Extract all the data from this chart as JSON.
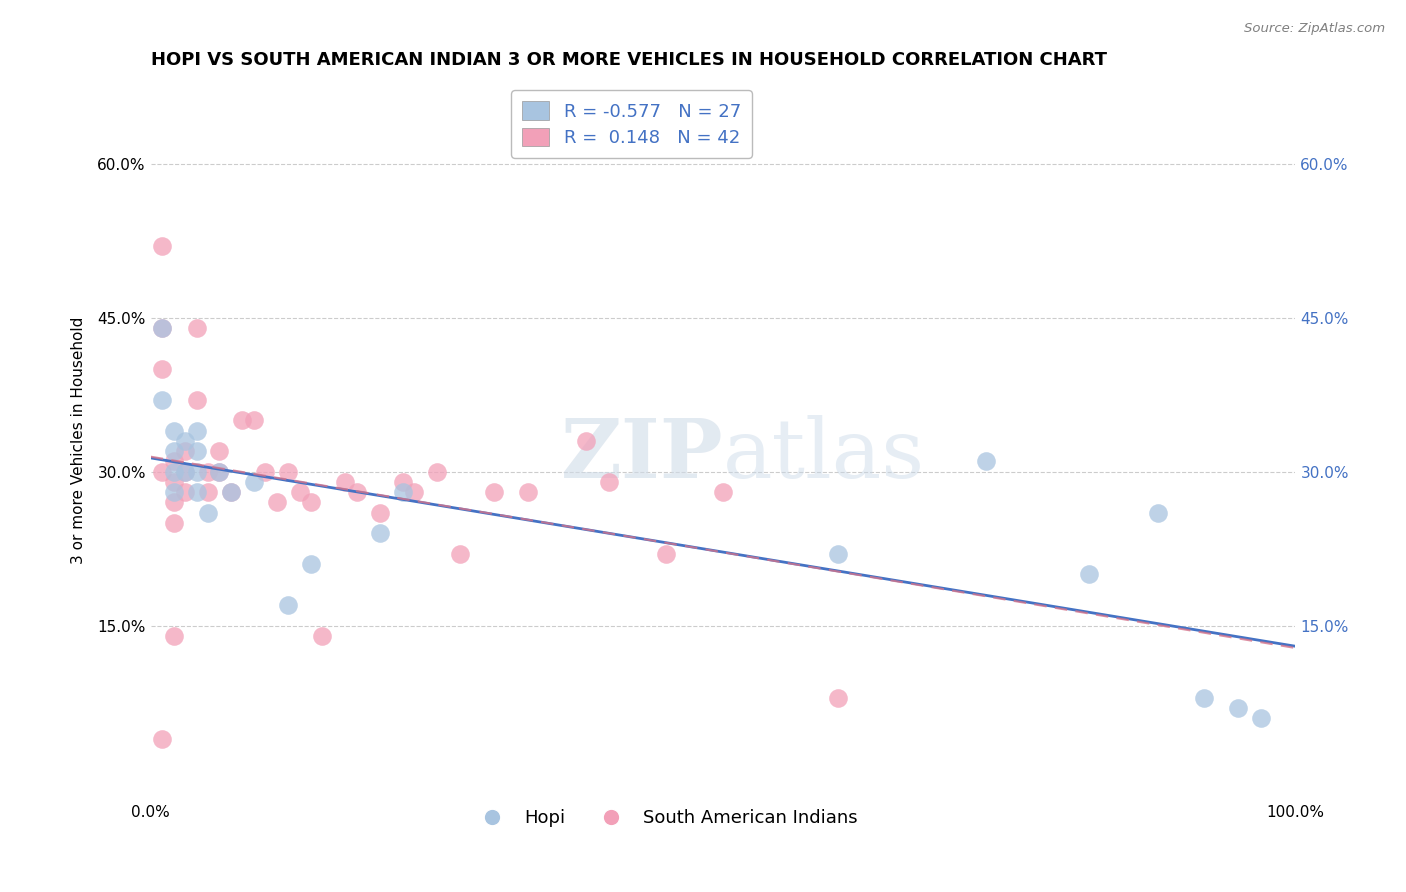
{
  "title": "HOPI VS SOUTH AMERICAN INDIAN 3 OR MORE VEHICLES IN HOUSEHOLD CORRELATION CHART",
  "source_text": "Source: ZipAtlas.com",
  "ylabel": "3 or more Vehicles in Household",
  "xlim": [
    0.0,
    1.0
  ],
  "ylim": [
    -0.02,
    0.68
  ],
  "x_ticks": [
    0.0,
    1.0
  ],
  "x_tick_labels": [
    "0.0%",
    "100.0%"
  ],
  "y_ticks": [
    0.15,
    0.3,
    0.45,
    0.6
  ],
  "y_tick_labels": [
    "15.0%",
    "30.0%",
    "45.0%",
    "60.0%"
  ],
  "hopi_R": -0.577,
  "hopi_N": 27,
  "sa_R": 0.148,
  "sa_N": 42,
  "hopi_color": "#a8c4e0",
  "sa_color": "#f2a0b8",
  "hopi_line_color": "#4472c4",
  "sa_line_color": "#d4728a",
  "legend_hopi_label": "Hopi",
  "legend_sa_label": "South American Indians",
  "watermark_zip": "ZIP",
  "watermark_atlas": "atlas",
  "hopi_x": [
    0.01,
    0.01,
    0.02,
    0.02,
    0.02,
    0.02,
    0.03,
    0.03,
    0.04,
    0.04,
    0.04,
    0.04,
    0.05,
    0.06,
    0.07,
    0.09,
    0.12,
    0.14,
    0.2,
    0.22,
    0.6,
    0.73,
    0.82,
    0.88,
    0.92,
    0.95,
    0.97
  ],
  "hopi_y": [
    0.44,
    0.37,
    0.34,
    0.32,
    0.3,
    0.28,
    0.33,
    0.3,
    0.34,
    0.32,
    0.3,
    0.28,
    0.26,
    0.3,
    0.28,
    0.29,
    0.17,
    0.21,
    0.24,
    0.28,
    0.22,
    0.31,
    0.2,
    0.26,
    0.08,
    0.07,
    0.06
  ],
  "sa_x": [
    0.01,
    0.01,
    0.01,
    0.01,
    0.01,
    0.02,
    0.02,
    0.02,
    0.02,
    0.02,
    0.03,
    0.03,
    0.03,
    0.04,
    0.04,
    0.05,
    0.05,
    0.06,
    0.06,
    0.07,
    0.08,
    0.09,
    0.1,
    0.11,
    0.12,
    0.13,
    0.14,
    0.15,
    0.17,
    0.18,
    0.2,
    0.22,
    0.23,
    0.25,
    0.27,
    0.3,
    0.33,
    0.38,
    0.4,
    0.45,
    0.5,
    0.6
  ],
  "sa_y": [
    0.52,
    0.44,
    0.4,
    0.3,
    0.04,
    0.31,
    0.29,
    0.27,
    0.25,
    0.14,
    0.32,
    0.3,
    0.28,
    0.44,
    0.37,
    0.3,
    0.28,
    0.32,
    0.3,
    0.28,
    0.35,
    0.35,
    0.3,
    0.27,
    0.3,
    0.28,
    0.27,
    0.14,
    0.29,
    0.28,
    0.26,
    0.29,
    0.28,
    0.3,
    0.22,
    0.28,
    0.28,
    0.33,
    0.29,
    0.22,
    0.28,
    0.08
  ],
  "background_color": "#ffffff",
  "grid_color": "#cccccc",
  "title_fontsize": 13,
  "axis_fontsize": 11,
  "legend_fontsize": 13,
  "marker_size": 180
}
